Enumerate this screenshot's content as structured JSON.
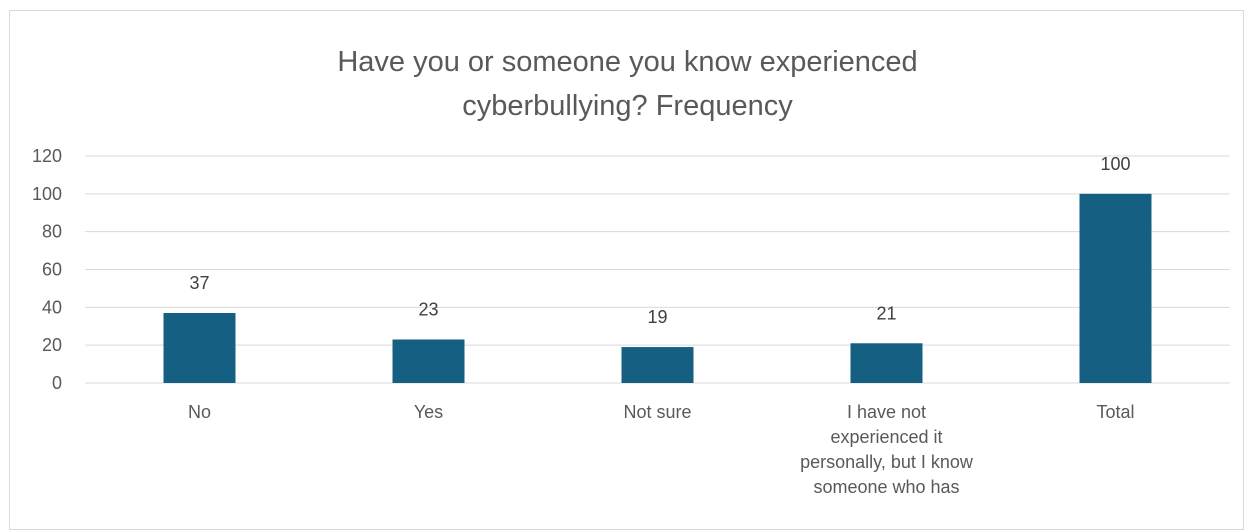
{
  "chart_data": {
    "type": "bar",
    "title": [
      "Have you or someone you know experienced",
      "cyberbullying?  Frequency"
    ],
    "categories": [
      [
        "No"
      ],
      [
        "Yes"
      ],
      [
        "Not sure"
      ],
      [
        "I have not",
        "experienced it",
        "personally, but I know",
        "someone who has"
      ],
      [
        "Total"
      ]
    ],
    "values": [
      37,
      23,
      19,
      21,
      100
    ],
    "data_labels": [
      "37",
      "23",
      "19",
      "21",
      "100"
    ],
    "ylim": [
      0,
      120
    ],
    "yticks": [
      "0",
      "20",
      "40",
      "60",
      "80",
      "100",
      "120"
    ],
    "grid": true,
    "legend": "none",
    "bar_color": "#156082",
    "grid_color": "#d9d9d9"
  }
}
